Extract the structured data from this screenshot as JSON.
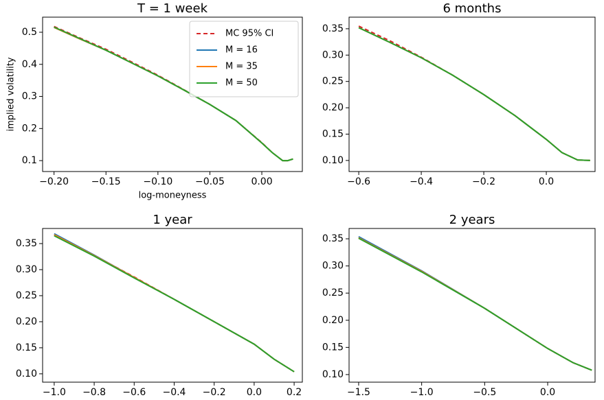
{
  "chart_data": [
    {
      "type": "line",
      "title": "T = 1 week",
      "xlabel": "log-moneyness",
      "ylabel": "implied volatility",
      "legend": "upper right",
      "x": [
        -0.2,
        -0.175,
        -0.15,
        -0.125,
        -0.1,
        -0.075,
        -0.05,
        -0.025,
        0.0,
        0.01,
        0.02,
        0.025,
        0.03
      ],
      "series": [
        {
          "name": "MC 95% CI",
          "color": "#d62728",
          "linestyle": "dashed",
          "values": [
            0.518,
            0.482,
            0.447,
            0.407,
            0.366,
            0.321,
            0.275,
            0.225,
            0.156,
            0.125,
            0.1,
            0.1,
            0.105
          ]
        },
        {
          "name": "M = 16",
          "color": "#1f77b4",
          "linestyle": "solid",
          "values": [
            0.515,
            0.479,
            0.444,
            0.404,
            0.364,
            0.32,
            0.275,
            0.225,
            0.155,
            0.125,
            0.1,
            0.1,
            0.105
          ]
        },
        {
          "name": "M = 35",
          "color": "#ff7f0e",
          "linestyle": "solid",
          "values": [
            0.515,
            0.479,
            0.444,
            0.404,
            0.364,
            0.32,
            0.275,
            0.225,
            0.155,
            0.125,
            0.1,
            0.1,
            0.105
          ]
        },
        {
          "name": "M = 50",
          "color": "#2ca02c",
          "linestyle": "solid",
          "values": [
            0.516,
            0.48,
            0.444,
            0.404,
            0.364,
            0.32,
            0.275,
            0.225,
            0.155,
            0.125,
            0.1,
            0.1,
            0.105
          ]
        }
      ],
      "xlim": [
        -0.211,
        0.039
      ],
      "ylim": [
        0.066,
        0.547
      ],
      "xticks": [
        {
          "value": -0.2,
          "label": "−0.20"
        },
        {
          "value": -0.15,
          "label": "−0.15"
        },
        {
          "value": -0.1,
          "label": "−0.10"
        },
        {
          "value": -0.05,
          "label": "−0.05"
        },
        {
          "value": 0.0,
          "label": "0.00"
        }
      ],
      "yticks": [
        0.1,
        0.2,
        0.3,
        0.4,
        0.5
      ]
    },
    {
      "type": "line",
      "title": "6 months",
      "x": [
        -0.6,
        -0.5,
        -0.4,
        -0.3,
        -0.2,
        -0.1,
        0.0,
        0.05,
        0.1,
        0.14
      ],
      "series": [
        {
          "name": "MC 95% CI",
          "color": "#d62728",
          "linestyle": "dashed",
          "values": [
            0.355,
            0.327,
            0.296,
            0.262,
            0.225,
            0.185,
            0.14,
            0.115,
            0.101,
            0.1
          ]
        },
        {
          "name": "M = 16",
          "color": "#1f77b4",
          "linestyle": "solid",
          "values": [
            0.352,
            0.324,
            0.295,
            0.262,
            0.225,
            0.185,
            0.14,
            0.115,
            0.101,
            0.1
          ]
        },
        {
          "name": "M = 35",
          "color": "#ff7f0e",
          "linestyle": "solid",
          "values": [
            0.352,
            0.324,
            0.295,
            0.262,
            0.225,
            0.185,
            0.14,
            0.115,
            0.101,
            0.1
          ]
        },
        {
          "name": "M = 50",
          "color": "#2ca02c",
          "linestyle": "solid",
          "values": [
            0.352,
            0.324,
            0.295,
            0.262,
            0.225,
            0.185,
            0.14,
            0.115,
            0.101,
            0.1
          ]
        }
      ],
      "xlim": [
        -0.631,
        0.156
      ],
      "ylim": [
        0.079,
        0.372
      ],
      "xticks": [
        {
          "value": -0.6,
          "label": "−0.6"
        },
        {
          "value": -0.4,
          "label": "−0.4"
        },
        {
          "value": -0.2,
          "label": "−0.2"
        },
        {
          "value": 0.0,
          "label": "0.0"
        }
      ],
      "yticks": [
        {
          "value": 0.1,
          "label": "0.10"
        },
        0.15,
        {
          "value": 0.2,
          "label": "0.20"
        },
        0.25,
        {
          "value": 0.3,
          "label": "0.30"
        },
        0.35
      ]
    },
    {
      "type": "line",
      "title": "1 year",
      "x": [
        -1.0,
        -0.8,
        -0.6,
        -0.4,
        -0.2,
        0.0,
        0.1,
        0.2
      ],
      "series": [
        {
          "name": "MC 95% CI",
          "color": "#d62728",
          "linestyle": "dashed",
          "values": [
            0.366,
            0.327,
            0.286,
            0.243,
            0.2,
            0.157,
            0.128,
            0.104
          ]
        },
        {
          "name": "M = 16",
          "color": "#1f77b4",
          "linestyle": "solid",
          "values": [
            0.369,
            0.328,
            0.285,
            0.243,
            0.2,
            0.157,
            0.128,
            0.104
          ]
        },
        {
          "name": "M = 35",
          "color": "#ff7f0e",
          "linestyle": "solid",
          "values": [
            0.367,
            0.327,
            0.285,
            0.243,
            0.2,
            0.157,
            0.128,
            0.104
          ]
        },
        {
          "name": "M = 50",
          "color": "#2ca02c",
          "linestyle": "solid",
          "values": [
            0.365,
            0.326,
            0.284,
            0.243,
            0.2,
            0.157,
            0.128,
            0.104
          ]
        }
      ],
      "xlim": [
        -1.058,
        0.241
      ],
      "ylim": [
        0.084,
        0.379
      ],
      "xticks": [
        {
          "value": -1.0,
          "label": "−1.0"
        },
        {
          "value": -0.8,
          "label": "−0.8"
        },
        {
          "value": -0.6,
          "label": "−0.6"
        },
        {
          "value": -0.4,
          "label": "−0.4"
        },
        {
          "value": -0.2,
          "label": "−0.2"
        },
        {
          "value": 0.0,
          "label": "0.0"
        },
        0.2
      ],
      "yticks": [
        {
          "value": 0.1,
          "label": "0.10"
        },
        0.15,
        {
          "value": 0.2,
          "label": "0.20"
        },
        0.25,
        {
          "value": 0.3,
          "label": "0.30"
        },
        0.35
      ]
    },
    {
      "type": "line",
      "title": "2 years",
      "x": [
        -1.5,
        -1.0,
        -0.5,
        0.0,
        0.2,
        0.35
      ],
      "series": [
        {
          "name": "MC 95% CI",
          "color": "#d62728",
          "linestyle": "dashed",
          "values": [
            0.352,
            0.29,
            0.222,
            0.148,
            0.122,
            0.108
          ]
        },
        {
          "name": "M = 16",
          "color": "#1f77b4",
          "linestyle": "solid",
          "values": [
            0.354,
            0.291,
            0.222,
            0.148,
            0.122,
            0.108
          ]
        },
        {
          "name": "M = 35",
          "color": "#ff7f0e",
          "linestyle": "solid",
          "values": [
            0.352,
            0.29,
            0.222,
            0.148,
            0.122,
            0.108
          ]
        },
        {
          "name": "M = 50",
          "color": "#2ca02c",
          "linestyle": "solid",
          "values": [
            0.351,
            0.289,
            0.222,
            0.148,
            0.122,
            0.108
          ]
        }
      ],
      "xlim": [
        -1.576,
        0.376
      ],
      "ylim": [
        0.086,
        0.369
      ],
      "xticks": [
        {
          "value": -1.5,
          "label": "−1.5"
        },
        {
          "value": -1.0,
          "label": "−1.0"
        },
        {
          "value": -0.5,
          "label": "−0.5"
        },
        {
          "value": 0.0,
          "label": "0.0"
        }
      ],
      "yticks": [
        {
          "value": 0.1,
          "label": "0.10"
        },
        0.15,
        {
          "value": 0.2,
          "label": "0.20"
        },
        0.25,
        {
          "value": 0.3,
          "label": "0.30"
        },
        0.35
      ]
    }
  ]
}
